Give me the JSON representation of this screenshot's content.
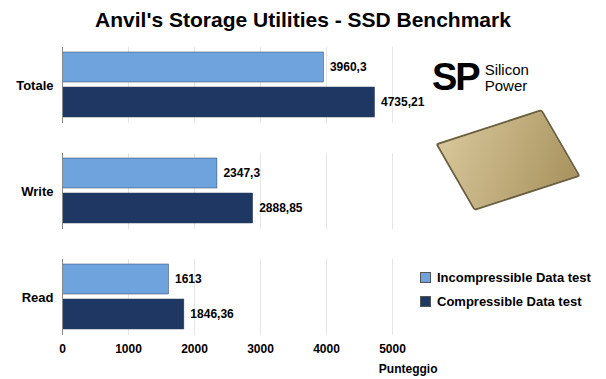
{
  "chart_data": {
    "type": "bar",
    "title": "Anvil's Storage Utilities - SSD Benchmark",
    "orientation": "horizontal",
    "categories": [
      "Totale",
      "Write",
      "Read"
    ],
    "series": [
      {
        "name": "Incompressible Data test",
        "color": "#6ea3de",
        "values": [
          3960.3,
          2347.3,
          1613
        ],
        "value_labels": [
          "3960,3",
          "2347,3",
          "1613"
        ]
      },
      {
        "name": "Compressible Data test",
        "color": "#1f3863",
        "values": [
          4735.21,
          2888.85,
          1846.36
        ],
        "value_labels": [
          "4735,21",
          "2888,85",
          "1846,36"
        ]
      }
    ],
    "x_label": "Punteggio",
    "xlim": [
      0,
      5000
    ],
    "xticks": [
      0,
      1000,
      2000,
      3000,
      4000,
      5000
    ],
    "grid": true,
    "data_labels": true,
    "legend": "lower right",
    "annotations": [
      "SP",
      "Silicon Power"
    ]
  }
}
